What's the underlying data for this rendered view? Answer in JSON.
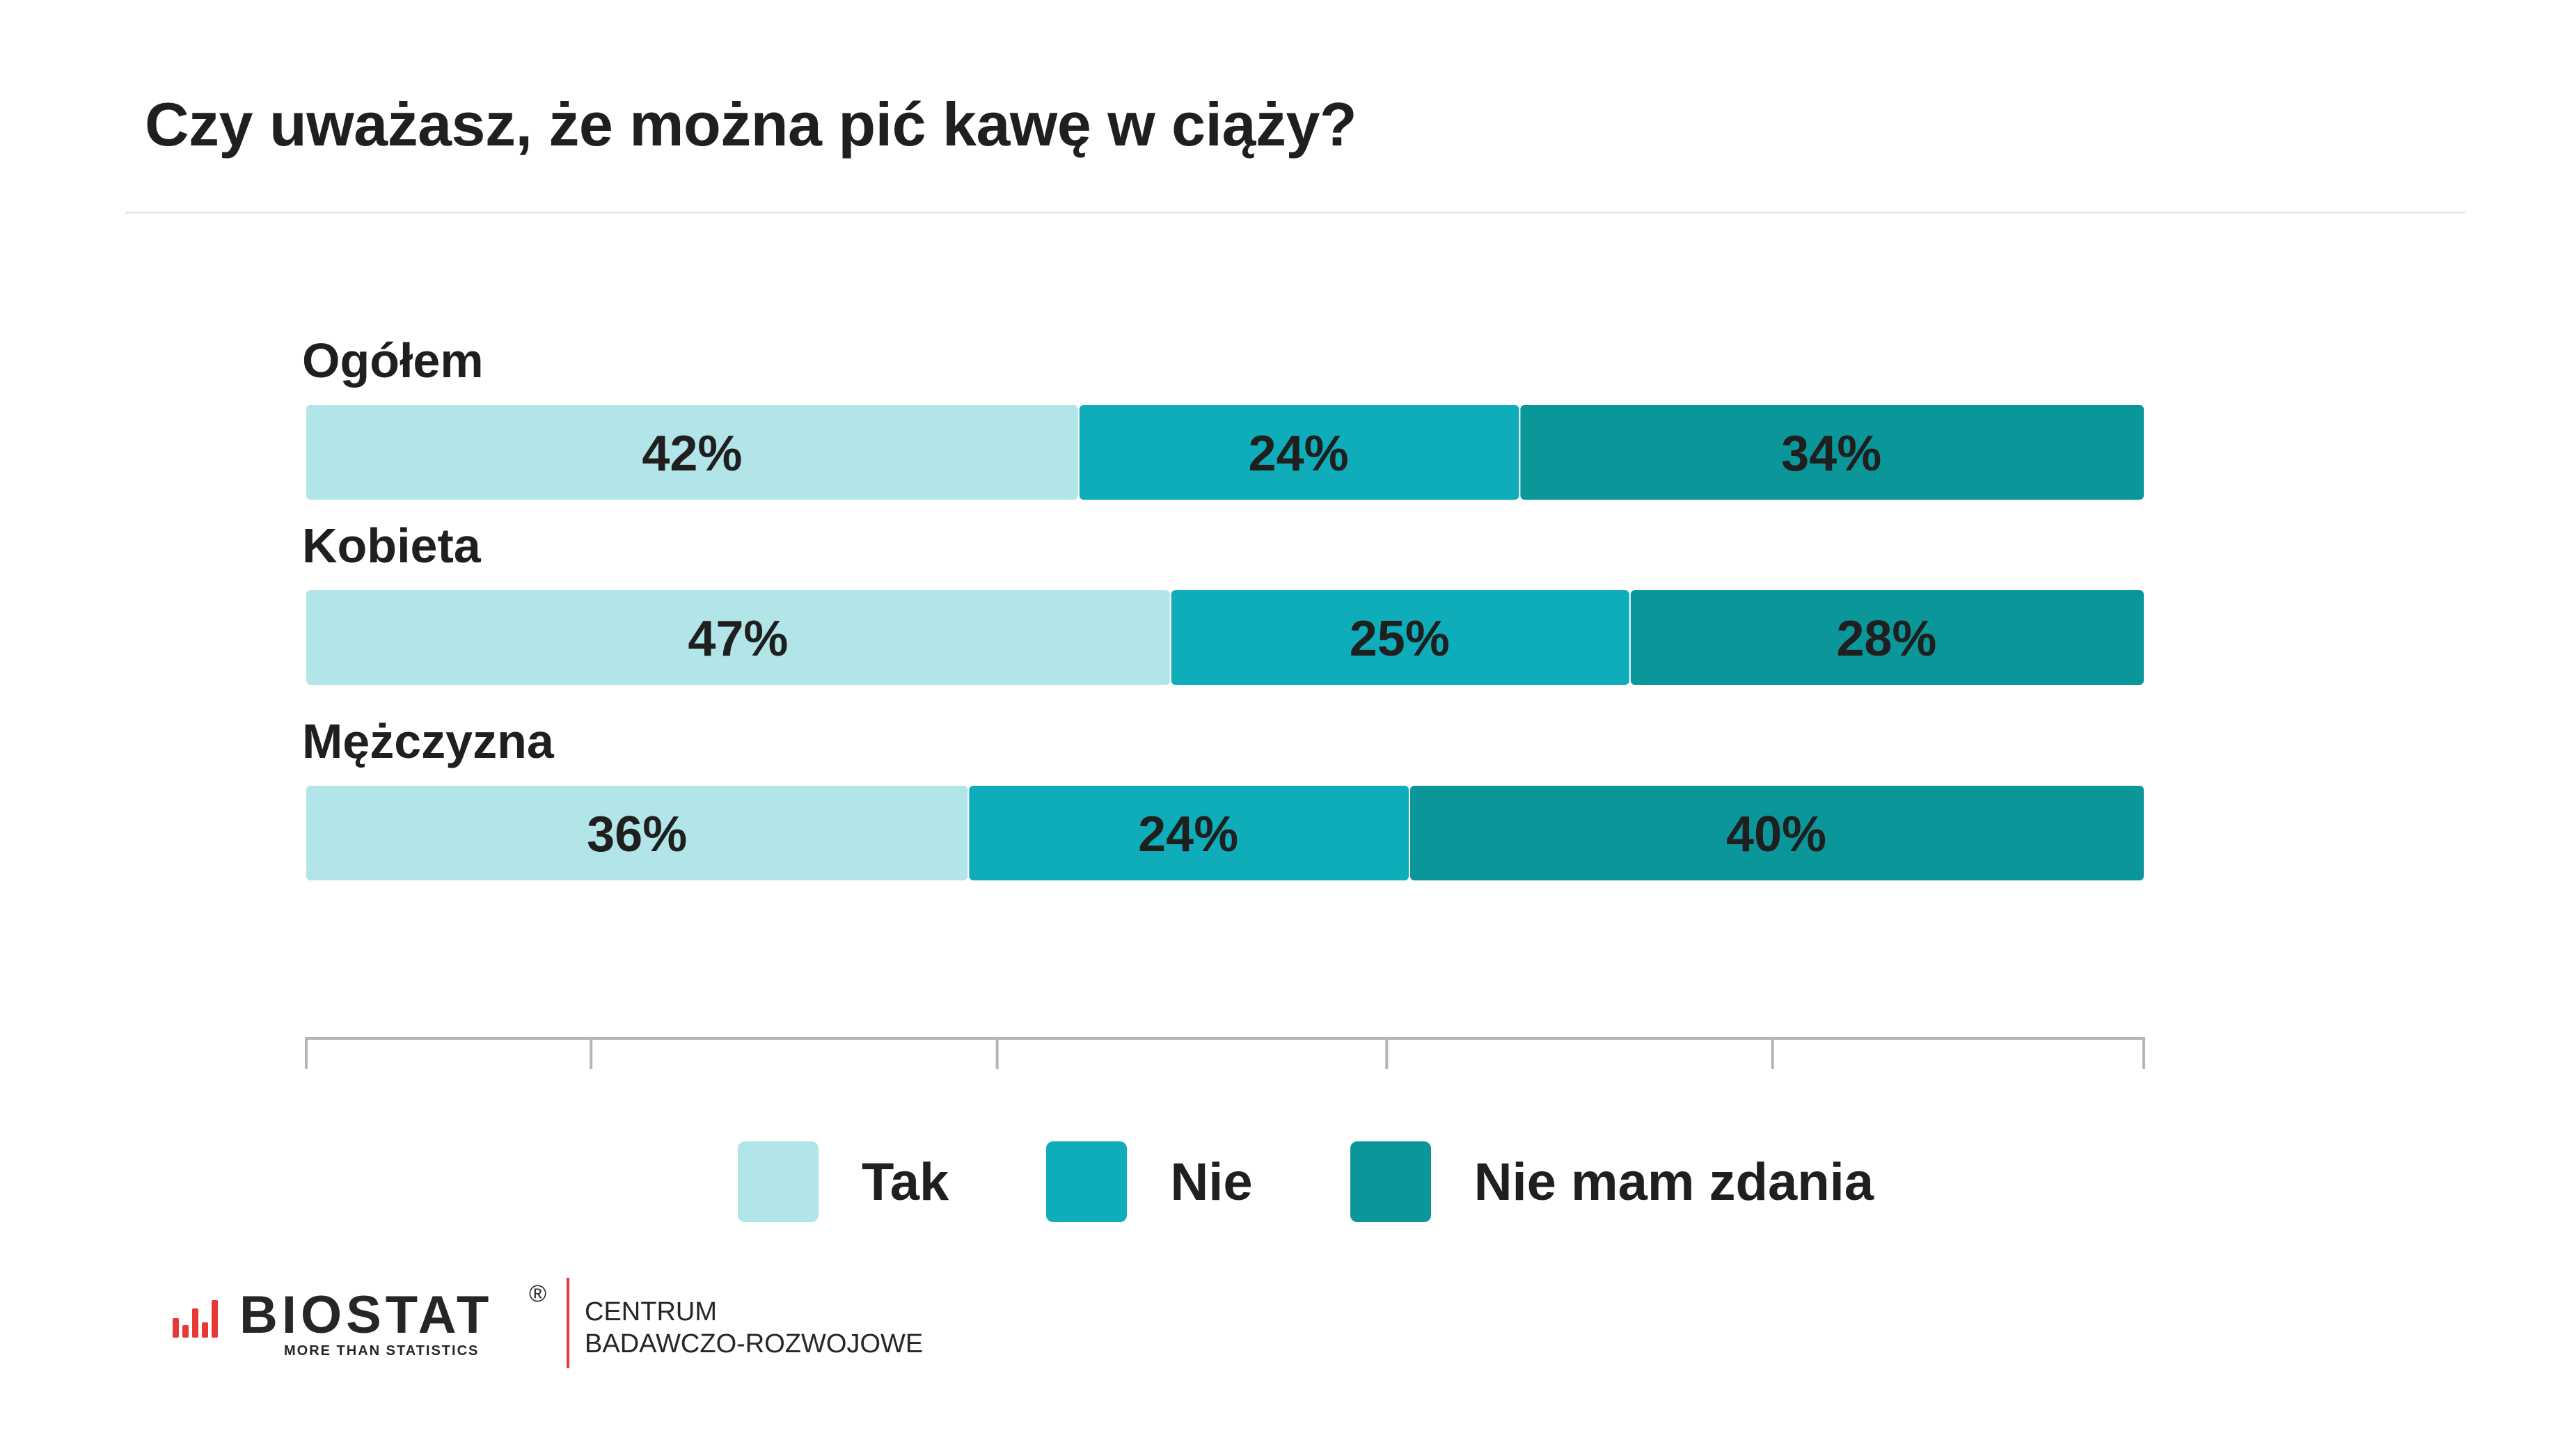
{
  "title": "Czy uważasz, że można pić kawę w ciąży?",
  "chart_data": {
    "type": "bar",
    "orientation": "horizontal",
    "stacked": true,
    "percent": true,
    "categories": [
      "Ogółem",
      "Kobieta",
      "Mężczyzna"
    ],
    "series": [
      {
        "name": "Tak",
        "color": "#b2e5e8",
        "values": [
          42,
          47,
          36
        ]
      },
      {
        "name": "Nie",
        "color": "#0eadb9",
        "values": [
          24,
          25,
          24
        ]
      },
      {
        "name": "Nie mam zdania",
        "color": "#0b9699",
        "values": [
          34,
          28,
          40
        ]
      }
    ],
    "data_labels": [
      [
        "42%",
        "24%",
        "34%"
      ],
      [
        "47%",
        "25%",
        "28%"
      ],
      [
        "36%",
        "24%",
        "40%"
      ]
    ],
    "xlim": [
      0,
      100
    ],
    "legend_position": "bottom",
    "grid": false
  },
  "legend": [
    {
      "label": "Tak",
      "color": "#b2e5e8"
    },
    {
      "label": "Nie",
      "color": "#0eadb9"
    },
    {
      "label": "Nie mam zdania",
      "color": "#0b9699"
    }
  ],
  "footer": {
    "logo_text": "BIOSTAT",
    "logo_registered": "®",
    "logo_tagline": "MORE THAN STATISTICS",
    "org_line1": "CENTRUM",
    "org_line2": "BADAWCZO-ROZWOJOWE",
    "logo_color": "#e53935"
  }
}
